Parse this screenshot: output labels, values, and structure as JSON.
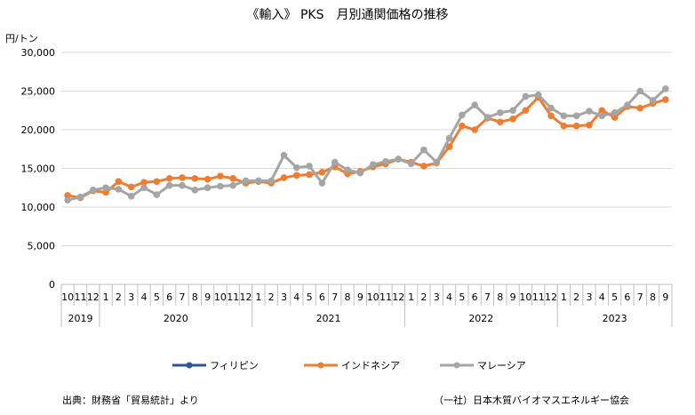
{
  "chart_data": {
    "type": "line",
    "title": "《輸入》 PKS　月別通関価格の推移",
    "unit_label": "円/トン",
    "ylim": [
      0,
      30000
    ],
    "y_ticks": [
      "0",
      "5,000",
      "10,000",
      "15,000",
      "20,000",
      "25,000",
      "30,000"
    ],
    "grid": "horizontal",
    "legend_position": "bottom",
    "month_labels": [
      "10",
      "11",
      "12",
      "1",
      "2",
      "3",
      "4",
      "5",
      "6",
      "7",
      "8",
      "9",
      "10",
      "11",
      "12",
      "1",
      "2",
      "3",
      "4",
      "5",
      "6",
      "7",
      "8",
      "9",
      "10",
      "11",
      "12",
      "1",
      "2",
      "3",
      "4",
      "5",
      "6",
      "7",
      "8",
      "9",
      "10",
      "11",
      "12",
      "1",
      "2",
      "3",
      "4",
      "5",
      "6",
      "7",
      "8",
      "9"
    ],
    "year_groups": [
      {
        "label": "2019",
        "months": 3
      },
      {
        "label": "2020",
        "months": 12
      },
      {
        "label": "2021",
        "months": 12
      },
      {
        "label": "2022",
        "months": 12
      },
      {
        "label": "2023",
        "months": 9
      }
    ],
    "series": [
      {
        "name": "フィリピン",
        "color": "#2f5597",
        "values": []
      },
      {
        "name": "インドネシア",
        "color": "#ed7d31",
        "values": [
          11500,
          11200,
          12100,
          11900,
          13300,
          12600,
          13200,
          13300,
          13700,
          13800,
          13700,
          13600,
          14000,
          13700,
          13100,
          13300,
          13100,
          13800,
          14100,
          14200,
          14500,
          15200,
          14300,
          14600,
          15200,
          15600,
          16200,
          15800,
          15300,
          15700,
          17800,
          20500,
          20000,
          21500,
          21000,
          21400,
          22500,
          24200,
          21800,
          20500,
          20500,
          20600,
          22500,
          21600,
          23000,
          22800,
          23400,
          23900
        ]
      },
      {
        "name": "マレーシア",
        "color": "#a5a5a5",
        "values": [
          10900,
          11300,
          12200,
          12500,
          12300,
          11400,
          12500,
          11600,
          12800,
          12800,
          12200,
          12500,
          12700,
          12800,
          13400,
          13400,
          13400,
          16700,
          15100,
          15300,
          13100,
          15800,
          14800,
          14400,
          15500,
          15900,
          16200,
          15600,
          17400,
          15800,
          18900,
          21900,
          23200,
          21600,
          22200,
          22500,
          24300,
          24500,
          22800,
          21800,
          21800,
          22400,
          21800,
          22200,
          23200,
          25000,
          23800,
          25300
        ]
      }
    ]
  },
  "footer": {
    "source": "出典：財務省「貿易統計」より",
    "org": "（一社）日本木質バイオマスエネルギー協会"
  }
}
